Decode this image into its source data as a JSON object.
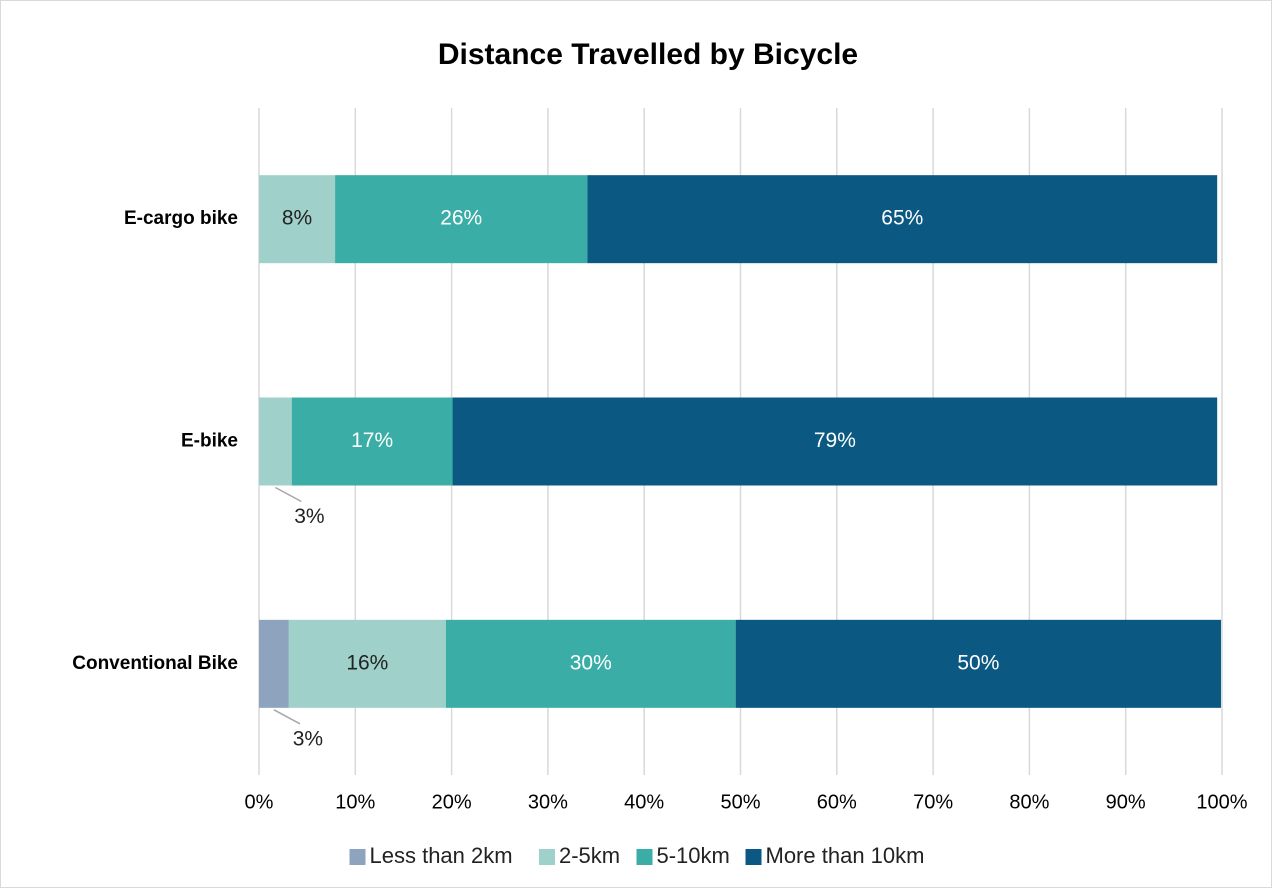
{
  "chart_data": {
    "type": "stacked_horizontal_bar",
    "title": "Distance Travelled by Bicycle",
    "categories": [
      "E-cargo bike",
      "E-bike",
      "Conventional Bike"
    ],
    "series": [
      {
        "name": "Less than 2km",
        "color": "#8ea3bd",
        "values": [
          null,
          null,
          3.1
        ],
        "value_labels": [
          null,
          null,
          "3%"
        ]
      },
      {
        "name": "2-5km",
        "color": "#9fd1ca",
        "values": [
          7.9,
          3.4,
          16.3
        ],
        "value_labels": [
          "8%",
          "3%",
          "16%"
        ]
      },
      {
        "name": "5-10km",
        "color": "#3aada6",
        "values": [
          26.2,
          16.7,
          30.1
        ],
        "value_labels": [
          "26%",
          "17%",
          "30%"
        ]
      },
      {
        "name": "More than 10km",
        "color": "#0b5882",
        "values": [
          65.4,
          79.4,
          50.4
        ],
        "value_labels": [
          "65%",
          "79%",
          "50%"
        ]
      }
    ],
    "xlim": [
      0,
      100
    ],
    "xticks": [
      {
        "value": 0,
        "label": "0%"
      },
      {
        "value": 10,
        "label": "10%"
      },
      {
        "value": 20,
        "label": "20%"
      },
      {
        "value": 30,
        "label": "30%"
      },
      {
        "value": 40,
        "label": "40%"
      },
      {
        "value": 50,
        "label": "50%"
      },
      {
        "value": 60,
        "label": "60%"
      },
      {
        "value": 70,
        "label": "70%"
      },
      {
        "value": 80,
        "label": "80%"
      },
      {
        "value": 90,
        "label": "90%"
      },
      {
        "value": 100,
        "label": "100%"
      }
    ],
    "grid": true,
    "legend": "bottom"
  }
}
